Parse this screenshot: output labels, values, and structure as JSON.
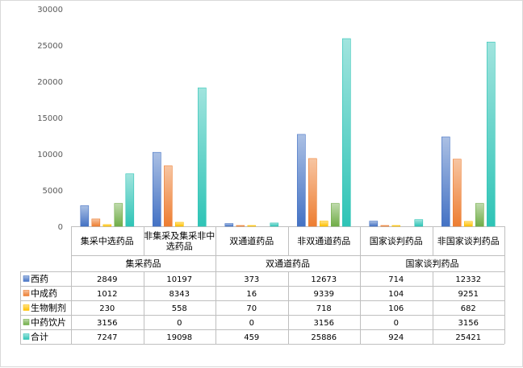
{
  "chart_data": {
    "type": "bar",
    "title": "",
    "xlabel": "",
    "ylabel": "",
    "ylim": [
      0,
      30000
    ],
    "yticks": [
      0,
      5000,
      10000,
      15000,
      20000,
      25000,
      30000
    ],
    "grid": false,
    "legend": "data-table",
    "groups": [
      {
        "label": "集采药品",
        "categories": [
          "集采中选药品",
          "非集采及集采非中选药品"
        ]
      },
      {
        "label": "双通道药品",
        "categories": [
          "双通道药品",
          "非双通道药品"
        ]
      },
      {
        "label": "国家谈判药品",
        "categories": [
          "国家谈判药品",
          "非国家谈判药品"
        ]
      }
    ],
    "categories": [
      "集采中选药品",
      "非集采及集采非中选药品",
      "双通道药品",
      "非双通道药品",
      "国家谈判药品",
      "非国家谈判药品"
    ],
    "series": [
      {
        "name": "西药",
        "color": "#4472c4",
        "values": [
          2849,
          10197,
          373,
          12673,
          714,
          12332
        ]
      },
      {
        "name": "中成药",
        "color": "#ed7d31",
        "values": [
          1012,
          8343,
          16,
          9339,
          104,
          9251
        ]
      },
      {
        "name": "生物制剂",
        "color": "#ffc000",
        "values": [
          230,
          558,
          70,
          718,
          106,
          682
        ]
      },
      {
        "name": "中药饮片",
        "color": "#70ad47",
        "values": [
          3156,
          0,
          0,
          3156,
          0,
          3156
        ]
      },
      {
        "name": "合计",
        "color": "#2ec4b6",
        "values": [
          7247,
          19098,
          459,
          25886,
          924,
          25421
        ]
      }
    ]
  }
}
